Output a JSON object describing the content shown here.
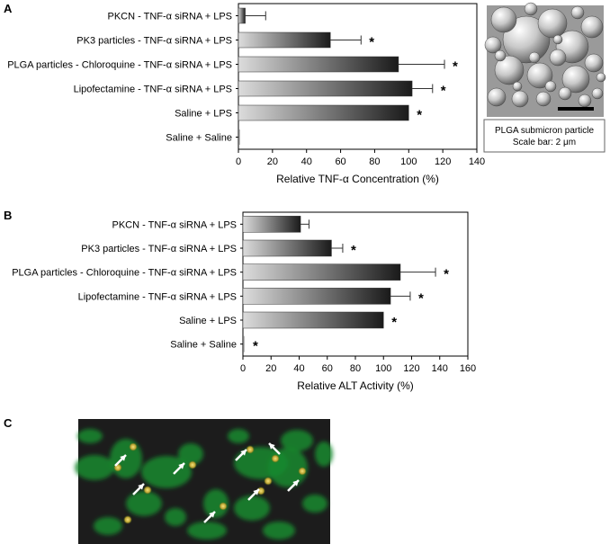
{
  "chart_data": [
    {
      "panel": "A",
      "type": "bar",
      "orientation": "horizontal",
      "categories": [
        "PKCN - TNF-α siRNA + LPS",
        "PK3 particles - TNF-α siRNA + LPS",
        "PLGA particles - Chloroquine - TNF-α siRNA  + LPS",
        "Lipofectamine - TNF-α siRNA  + LPS",
        "Saline + LPS",
        "Saline + Saline"
      ],
      "values": [
        4,
        54,
        94,
        102,
        100,
        0
      ],
      "errors": [
        12,
        18,
        27,
        12,
        0,
        0
      ],
      "significant": [
        false,
        true,
        true,
        true,
        true,
        false
      ],
      "marker": "*",
      "xlabel": "Relative TNF-α Concentration (%)",
      "xlim": [
        0,
        140
      ],
      "xticks": [
        0,
        20,
        40,
        60,
        80,
        100,
        120,
        140
      ],
      "grid": false
    },
    {
      "panel": "B",
      "type": "bar",
      "orientation": "horizontal",
      "categories": [
        "PKCN - TNF-α siRNA + LPS",
        "PK3 particles - TNF-α siRNA + LPS",
        "PLGA particles - Chloroquine - TNF-α siRNA  + LPS",
        "Lipofectamine - TNF-α siRNA  + LPS",
        "Saline + LPS",
        "Saline + Saline"
      ],
      "values": [
        41,
        63,
        112,
        105,
        100,
        0
      ],
      "errors": [
        6,
        8,
        25,
        14,
        0,
        0
      ],
      "significant": [
        false,
        true,
        true,
        true,
        true,
        true
      ],
      "marker": "*",
      "xlabel": "Relative ALT Activity (%)",
      "xlim": [
        0,
        160
      ],
      "xticks": [
        0,
        20,
        40,
        60,
        80,
        100,
        120,
        140,
        160
      ],
      "grid": false
    }
  ],
  "inset": {
    "caption_line1": "PLGA submicron particle",
    "caption_line2": "Scale bar: 2 μm"
  },
  "panel_c": {
    "letter": "C",
    "arrow_count": 9,
    "colors": {
      "background": "#1a1a1a",
      "signal": "#1f9a3a",
      "arrow": "#ffffff"
    }
  },
  "colors": {
    "bar_dark": "#1a1a1a",
    "bar_light": "#d9d9d9",
    "axis": "#000000"
  }
}
